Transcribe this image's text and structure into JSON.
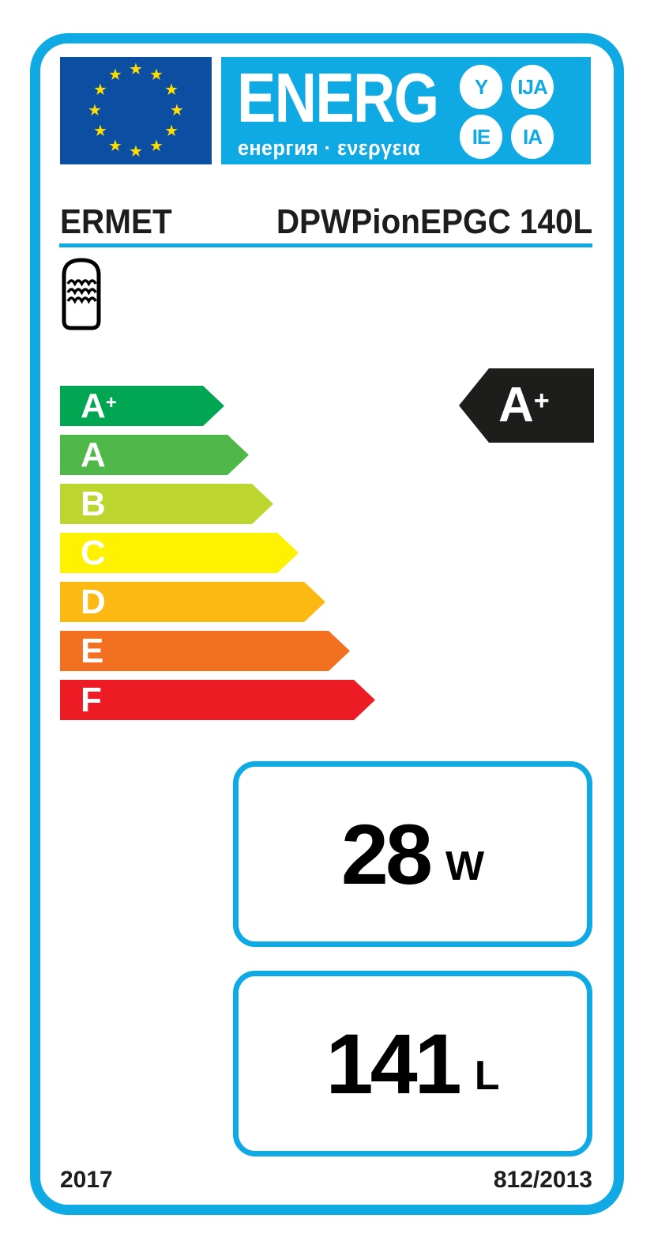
{
  "label": {
    "header": {
      "logo_text": "ENERG",
      "logo_subtitle": "енергия · ενεργεια",
      "lang_bubbles": [
        "Y",
        "IJA",
        "IE",
        "IA"
      ],
      "eu_flag_star_count": 12
    },
    "brand": "ERMET",
    "model": "DPWPionEPGC 140L",
    "product_icon": "water-storage-tank",
    "rating": {
      "letter": "A",
      "sup": "+"
    },
    "scale": [
      {
        "letter": "A",
        "sup": "+",
        "color": "#00A651"
      },
      {
        "letter": "A",
        "sup": "",
        "color": "#50B848"
      },
      {
        "letter": "B",
        "sup": "",
        "color": "#BDD62F"
      },
      {
        "letter": "C",
        "sup": "",
        "color": "#FFF200"
      },
      {
        "letter": "D",
        "sup": "",
        "color": "#FDB913"
      },
      {
        "letter": "E",
        "sup": "",
        "color": "#F37021"
      },
      {
        "letter": "F",
        "sup": "",
        "color": "#ED1C24"
      }
    ],
    "metrics": {
      "power": {
        "value": "28",
        "unit": "W"
      },
      "volume": {
        "value": "141",
        "unit": "L"
      }
    },
    "footer": {
      "year": "2017",
      "regulation": "812/2013"
    },
    "colors": {
      "accent_cyan": "#0FAAE4",
      "eu_flag_blue": "#0B4EA2",
      "star_yellow": "#FFDD00",
      "ink_black": "#1D1D1B"
    }
  }
}
